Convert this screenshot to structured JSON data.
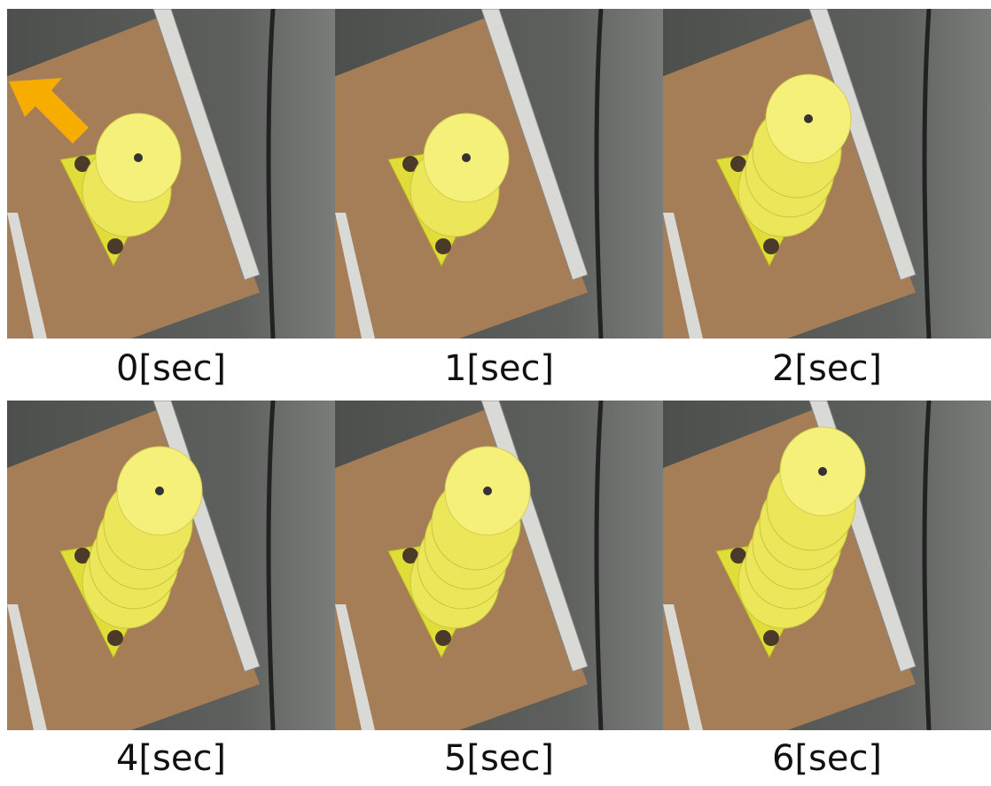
{
  "panels": [
    {
      "caption": "0[sec]"
    },
    {
      "caption": "1[sec]"
    },
    {
      "caption": "2[sec]"
    },
    {
      "caption": "4[sec]"
    },
    {
      "caption": "5[sec]"
    },
    {
      "caption": "6[sec]"
    }
  ]
}
